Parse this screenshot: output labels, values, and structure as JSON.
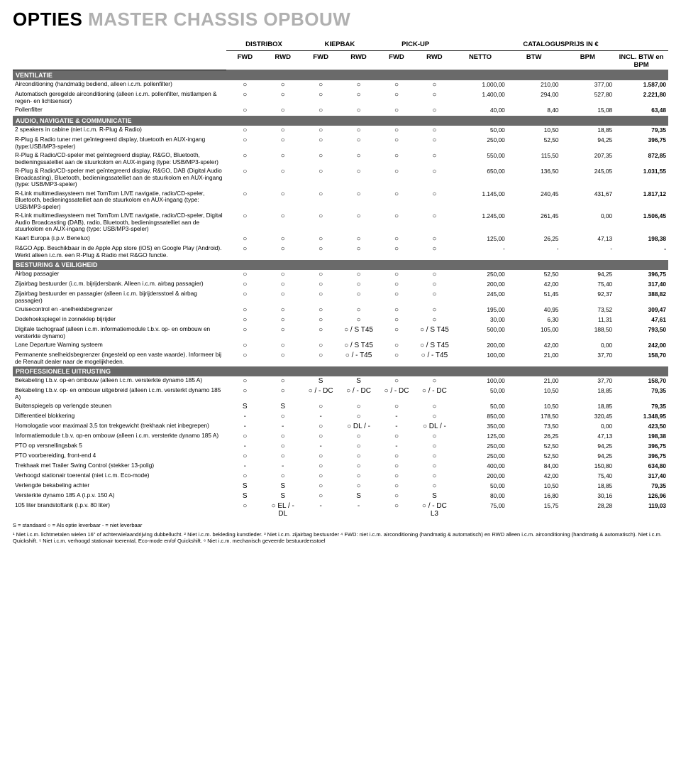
{
  "title_dark": "OPTIES",
  "title_light": "MASTER CHASSIS OPBOUW",
  "column_groups": [
    {
      "label": "DISTRIBOX",
      "span": 2
    },
    {
      "label": "KIEPBAK",
      "span": 2
    },
    {
      "label": "PICK-UP",
      "span": 2
    },
    {
      "label": "CATALOGUSPRIJS IN €",
      "span": 4
    }
  ],
  "sub_headers": [
    "FWD",
    "RWD",
    "FWD",
    "RWD",
    "FWD",
    "RWD",
    "NETTO",
    "BTW",
    "BPM",
    "INCL. BTW en BPM"
  ],
  "sections": [
    {
      "title": "VENTILATIE",
      "rows": [
        {
          "desc": "Airconditioning (handmatig bediend, alleen i.c.m. pollenfilter)",
          "sym": [
            "○",
            "○",
            "○",
            "○",
            "○",
            "○"
          ],
          "prices": [
            "1.000,00",
            "210,00",
            "377,00",
            "1.587,00"
          ]
        },
        {
          "desc": "Automatisch geregelde airconditioning (alleen i.c.m. pollenfilter, mistlampen & regen- en lichtsensor)",
          "sym": [
            "○",
            "○",
            "○",
            "○",
            "○",
            "○"
          ],
          "prices": [
            "1.400,00",
            "294,00",
            "527,80",
            "2.221,80"
          ]
        },
        {
          "desc": "Pollenfilter",
          "sym": [
            "○",
            "○",
            "○",
            "○",
            "○",
            "○"
          ],
          "prices": [
            "40,00",
            "8,40",
            "15,08",
            "63,48"
          ]
        }
      ]
    },
    {
      "title": "AUDIO, NAVIGATIE & COMMUNICATIE",
      "rows": [
        {
          "desc": "2 speakers in cabine (niet i.c.m. R-Plug & Radio)",
          "sym": [
            "○",
            "○",
            "○",
            "○",
            "○",
            "○"
          ],
          "prices": [
            "50,00",
            "10,50",
            "18,85",
            "79,35"
          ]
        },
        {
          "desc": "R-Plug & Radio tuner met geïntegreerd display, bluetooth en AUX-ingang (type:USB/MP3-speler)",
          "sym": [
            "○",
            "○",
            "○",
            "○",
            "○",
            "○"
          ],
          "prices": [
            "250,00",
            "52,50",
            "94,25",
            "396,75"
          ]
        },
        {
          "desc": "R-Plug & Radio/CD-speler met geïntegreerd display, R&GO, Bluetooth, bedieningssatelliet aan de stuurkolom en AUX-ingang (type: USB/MP3-speler)",
          "sym": [
            "○",
            "○",
            "○",
            "○",
            "○",
            "○"
          ],
          "prices": [
            "550,00",
            "115,50",
            "207,35",
            "872,85"
          ]
        },
        {
          "desc": "R-Plug & Radio/CD-speler met geïntegreerd display, R&GO, DAB (Digital Audio Broadcasting), Bluetooth, bedieningssatelliet aan de stuurkolom en AUX-ingang (type: USB/MP3-speler)",
          "sym": [
            "○",
            "○",
            "○",
            "○",
            "○",
            "○"
          ],
          "prices": [
            "650,00",
            "136,50",
            "245,05",
            "1.031,55"
          ]
        },
        {
          "desc": "R-Link multimediasysteem met TomTom LIVE navigatie, radio/CD-speler, Bluetooth, bedieningssatelliet aan de stuurkolom en AUX-ingang (type: USB/MP3-speler)",
          "sym": [
            "○",
            "○",
            "○",
            "○",
            "○",
            "○"
          ],
          "prices": [
            "1.145,00",
            "240,45",
            "431,67",
            "1.817,12"
          ]
        },
        {
          "desc": "R-Link multimediasysteem met TomTom LIVE navigatie, radio/CD-speler, Digital Audio Broadcasting (DAB), radio, Bluetooth, bedieningssatelliet aan de stuurkolom en AUX-ingang (type: USB/MP3-speler)",
          "sym": [
            "○",
            "○",
            "○",
            "○",
            "○",
            "○"
          ],
          "prices": [
            "1.245,00",
            "261,45",
            "0,00",
            "1.506,45"
          ]
        },
        {
          "desc": "Kaart Europa (i.p.v. Benelux)",
          "sym": [
            "○",
            "○",
            "○",
            "○",
            "○",
            "○"
          ],
          "prices": [
            "125,00",
            "26,25",
            "47,13",
            "198,38"
          ]
        },
        {
          "desc": "R&GO App. Beschikbaar in de Apple App store (iOS) en Google Play (Android). Werkt alleen i.c.m. een R-Plug & Radio met R&GO functie.",
          "sym": [
            "○",
            "○",
            "○",
            "○",
            "○",
            "○"
          ],
          "prices": [
            "-",
            "-",
            "-",
            "-"
          ]
        }
      ]
    },
    {
      "title": "BESTURING & VEILIGHEID",
      "rows": [
        {
          "desc": "Airbag passagier",
          "sym": [
            "○",
            "○",
            "○",
            "○",
            "○",
            "○"
          ],
          "prices": [
            "250,00",
            "52,50",
            "94,25",
            "396,75"
          ]
        },
        {
          "desc": "Zijairbag bestuurder (i.c.m. bijrijdersbank. Alleen i.c.m. airbag passagier)",
          "sym": [
            "○",
            "○",
            "○",
            "○",
            "○",
            "○"
          ],
          "prices": [
            "200,00",
            "42,00",
            "75,40",
            "317,40"
          ]
        },
        {
          "desc": "Zijairbag bestuurder en passagier (alleen i.c.m. bijrijdersstoel & airbag passagier)",
          "sym": [
            "○",
            "○",
            "○",
            "○",
            "○",
            "○"
          ],
          "prices": [
            "245,00",
            "51,45",
            "92,37",
            "388,82"
          ]
        },
        {
          "desc": "Cruisecontrol en -snelheidsbegrenzer",
          "sym": [
            "○",
            "○",
            "○",
            "○",
            "○",
            "○"
          ],
          "prices": [
            "195,00",
            "40,95",
            "73,52",
            "309,47"
          ]
        },
        {
          "desc": "Dodehoekspiegel in zonneklep bijrijder",
          "sym": [
            "○",
            "○",
            "○",
            "○",
            "○",
            "○"
          ],
          "prices": [
            "30,00",
            "6,30",
            "11,31",
            "47,61"
          ]
        },
        {
          "desc": "Digitale tachograaf  (alleen i.c.m. informatiemodule t.b.v. op- en ombouw en versterkte dynamo)",
          "sym": [
            "○",
            "○",
            "○",
            "○ / S T45",
            "○",
            "○ / S T45"
          ],
          "prices": [
            "500,00",
            "105,00",
            "188,50",
            "793,50"
          ]
        },
        {
          "desc": "Lane Departure Warning systeem",
          "sym": [
            "○",
            "○",
            "○",
            "○ / S T45",
            "○",
            "○ / S T45"
          ],
          "prices": [
            "200,00",
            "42,00",
            "0,00",
            "242,00"
          ]
        },
        {
          "desc": "Permanente snelheidsbegrenzer (ingesteld op een vaste waarde). Informeer bij de Renault dealer naar de mogelijkheden.",
          "sym": [
            "○",
            "○",
            "○",
            "○ / - T45",
            "○",
            "○ / - T45"
          ],
          "prices": [
            "100,00",
            "21,00",
            "37,70",
            "158,70"
          ]
        }
      ]
    },
    {
      "title": "PROFESSIONELE UITRUSTING",
      "rows": [
        {
          "desc": "Bekabeling t.b.v. op-en ombouw (alleen i.c.m. versterkte dynamo 185 A)",
          "sym": [
            "○",
            "○",
            "S",
            "S",
            "○",
            "○"
          ],
          "prices": [
            "100,00",
            "21,00",
            "37,70",
            "158,70"
          ]
        },
        {
          "desc": "Bekabeling t.b.v. op- en ombouw uitgebreid (alleen i.c.m. versterkt dynamo 185 A)",
          "sym": [
            "○",
            "○",
            "○ / - DC",
            "○ / - DC",
            "○ / - DC",
            "○ / - DC"
          ],
          "prices": [
            "50,00",
            "10,50",
            "18,85",
            "79,35"
          ]
        },
        {
          "desc": "Buitenspiegels op verlengde steunen",
          "sym": [
            "S",
            "S",
            "○",
            "○",
            "○",
            "○"
          ],
          "prices": [
            "50,00",
            "10,50",
            "18,85",
            "79,35"
          ]
        },
        {
          "desc": "Differentieel blokkering",
          "sym": [
            "-",
            "○",
            "-",
            "○",
            "-",
            "○"
          ],
          "prices": [
            "850,00",
            "178,50",
            "320,45",
            "1.348,95"
          ]
        },
        {
          "desc": "Homologatie voor maximaal 3,5 ton trekgewicht (trekhaak niet inbegrepen)",
          "sym": [
            "-",
            "-",
            "○",
            "○ DL / -",
            "-",
            "○ DL / -"
          ],
          "prices": [
            "350,00",
            "73,50",
            "0,00",
            "423,50"
          ]
        },
        {
          "desc": "Informatiemodule t.b.v. op-en ombouw (alleen i.c.m. versterkte dynamo 185 A)",
          "sym": [
            "○",
            "○",
            "○",
            "○",
            "○",
            "○"
          ],
          "prices": [
            "125,00",
            "26,25",
            "47,13",
            "198,38"
          ]
        },
        {
          "desc": "PTO op versnellingsbak 5",
          "sym": [
            "-",
            "○",
            "-",
            "○",
            "-",
            "○"
          ],
          "prices": [
            "250,00",
            "52,50",
            "94,25",
            "396,75"
          ]
        },
        {
          "desc": "PTO voorbereiding, front-end 4",
          "sym": [
            "○",
            "○",
            "○",
            "○",
            "○",
            "○"
          ],
          "prices": [
            "250,00",
            "52,50",
            "94,25",
            "396,75"
          ]
        },
        {
          "desc": "Trekhaak met Trailer Swing Control (stekker 13-polig)",
          "sym": [
            "-",
            "-",
            "○",
            "○",
            "○",
            "○"
          ],
          "prices": [
            "400,00",
            "84,00",
            "150,80",
            "634,80"
          ]
        },
        {
          "desc": "Verhoogd stationair toerental (niet i.c.m. Eco-mode)",
          "sym": [
            "○",
            "○",
            "○",
            "○",
            "○",
            "○"
          ],
          "prices": [
            "200,00",
            "42,00",
            "75,40",
            "317,40"
          ]
        },
        {
          "desc": "Verlengde bekabeling achter",
          "sym": [
            "S",
            "S",
            "○",
            "○",
            "○",
            "○"
          ],
          "prices": [
            "50,00",
            "10,50",
            "18,85",
            "79,35"
          ]
        },
        {
          "desc": "Versterkte dynamo 185 A (i.p.v. 150 A)",
          "sym": [
            "S",
            "S",
            "○",
            "S",
            "○",
            "S"
          ],
          "prices": [
            "80,00",
            "16,80",
            "30,16",
            "126,96"
          ]
        },
        {
          "desc": "105 liter brandstoftank (i.p.v. 80 liter)",
          "sym": [
            "○",
            "○ EL / - DL",
            "-",
            "-",
            "○",
            "○ / - DC L3"
          ],
          "prices": [
            "75,00",
            "15,75",
            "28,28",
            "119,03"
          ]
        }
      ]
    }
  ],
  "legend": "S = standaard    ○ = Als optie leverbaar    - = niet leverbaar",
  "footnote": "¹ Niet i.c.m. lichtmetalen wielen 16\" of achterwielaandrijving dubbellucht.  ² Niet i.c.m. bekleding kunstleder. ³ Niet i.c.m. zijairbag bestuurder  ⁴ FWD: niet i.c.m. airconditioning (handmatig & automatisch) en RWD alleen i.c.m. airconditioning (handmatig & automatisch). Niet i.c.m. Quickshift. ⁵ Niet i.c.m. verhoogd stationair toerental, Eco-mode en/of Quickshift.  ⁶ Niet i.c.m. mechanisch geveerde bestuurdersstoel"
}
